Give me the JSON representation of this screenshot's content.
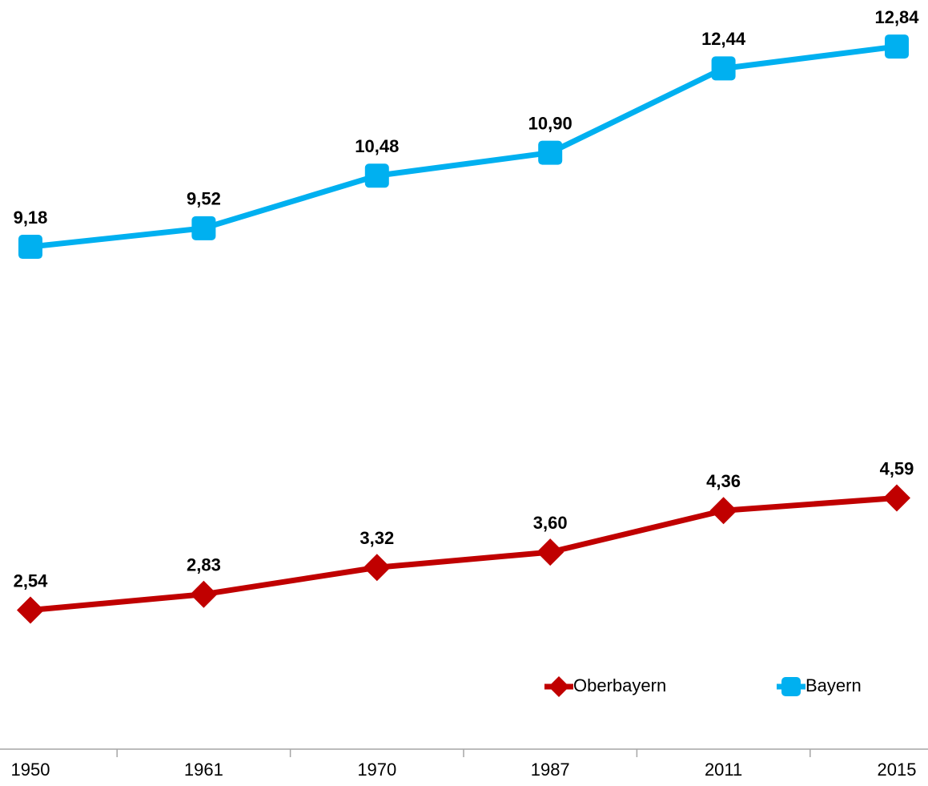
{
  "chart_data": {
    "type": "line",
    "categories": [
      "1950",
      "1961",
      "1970",
      "1987",
      "2011",
      "2015"
    ],
    "series": [
      {
        "name": "Oberbayern",
        "color": "#c00000",
        "marker": "diamond",
        "values": [
          2.54,
          2.83,
          3.32,
          3.6,
          4.36,
          4.59
        ],
        "value_labels": [
          "2,54",
          "2,83",
          "3,32",
          "3,60",
          "4,36",
          "4,59"
        ]
      },
      {
        "name": "Bayern",
        "color": "#00b0f0",
        "marker": "square",
        "values": [
          9.18,
          9.52,
          10.48,
          10.9,
          12.44,
          12.84
        ],
        "value_labels": [
          "9,18",
          "9,52",
          "10,48",
          "10,90",
          "12,44",
          "12,84"
        ]
      }
    ],
    "ylim": [
      0,
      13.5
    ],
    "legend": "lower right"
  }
}
